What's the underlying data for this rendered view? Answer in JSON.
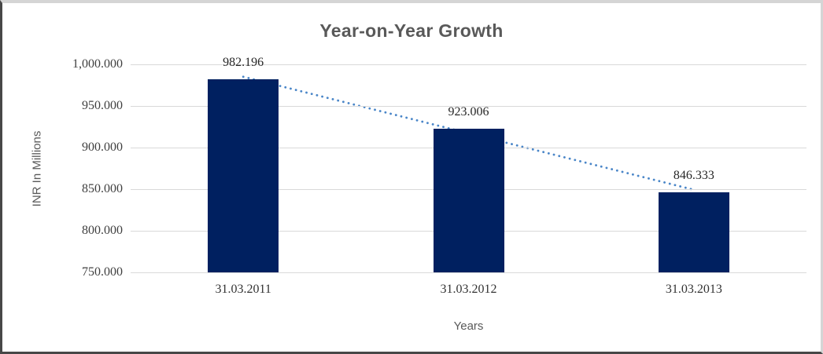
{
  "chart_data": {
    "type": "bar",
    "title": "Year-on-Year Growth",
    "xlabel": "Years",
    "ylabel": "INR In Millions",
    "categories": [
      "31.03.2011",
      "31.03.2012",
      "31.03.2013"
    ],
    "values": [
      982.196,
      923.006,
      846.333
    ],
    "data_labels": [
      "982.196",
      "923.006",
      "846.333"
    ],
    "ylim": [
      750,
      1000
    ],
    "ytick_step": 50,
    "ytick_labels": [
      "750.000",
      "800.000",
      "850.000",
      "900.000",
      "950.000",
      "1,000.000"
    ],
    "grid": true,
    "legend": "none",
    "bar_color": "#002060",
    "gridline_color": "#d9d9d9",
    "trendline": {
      "type": "linear",
      "style": "dotted",
      "color": "#4a86c8"
    }
  }
}
